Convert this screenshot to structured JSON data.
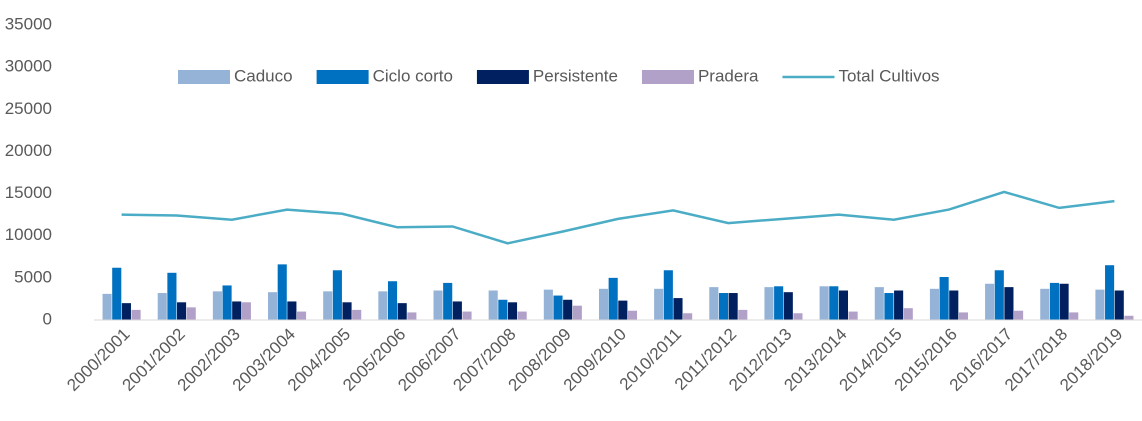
{
  "chart_data": {
    "type": "bar_line",
    "categories": [
      "2000/2001",
      "2001/2002",
      "2002/2003",
      "2003/2004",
      "2004/2005",
      "2005/2006",
      "2006/2007",
      "2007/2008",
      "2008/2009",
      "2009/2010",
      "2010/2011",
      "2011/2012",
      "2012/2013",
      "2013/2014",
      "2014/2015",
      "2015/2016",
      "2016/2017",
      "2017/2018",
      "2018/2019"
    ],
    "series": [
      {
        "name": "Caduco",
        "type": "bar",
        "color": "#95b3d7",
        "values": [
          3100,
          3200,
          3400,
          3300,
          3400,
          3400,
          3500,
          3500,
          3600,
          3700,
          3700,
          3900,
          3900,
          4000,
          3900,
          3700,
          4300,
          3700,
          3600
        ]
      },
      {
        "name": "Ciclo corto",
        "type": "bar",
        "color": "#0070c0",
        "values": [
          6200,
          5600,
          4100,
          6600,
          5900,
          4600,
          4400,
          2400,
          2900,
          5000,
          5900,
          3200,
          4000,
          4000,
          3200,
          5100,
          5900,
          4400,
          6500
        ]
      },
      {
        "name": "Persistente",
        "type": "bar",
        "color": "#002060",
        "values": [
          2000,
          2100,
          2200,
          2200,
          2100,
          2000,
          2200,
          2100,
          2400,
          2300,
          2600,
          3200,
          3300,
          3500,
          3500,
          3500,
          3900,
          4300,
          3500
        ]
      },
      {
        "name": "Pradera",
        "type": "bar",
        "color": "#b1a0c7",
        "values": [
          1200,
          1500,
          2100,
          1000,
          1200,
          900,
          1000,
          1000,
          1700,
          1100,
          800,
          1200,
          800,
          1000,
          1400,
          900,
          1100,
          900,
          500
        ]
      },
      {
        "name": "Total Cultivos",
        "type": "line",
        "color": "#4bacc6",
        "values": [
          12500,
          12400,
          11900,
          13100,
          12600,
          11000,
          11100,
          9100,
          10500,
          12000,
          13000,
          11500,
          12000,
          12500,
          11900,
          13100,
          15200,
          13300,
          14100
        ]
      }
    ],
    "ylim": [
      0,
      35000
    ],
    "yticks": [
      0,
      5000,
      10000,
      15000,
      20000,
      25000,
      30000,
      35000
    ],
    "grid": false,
    "legend": "top"
  }
}
